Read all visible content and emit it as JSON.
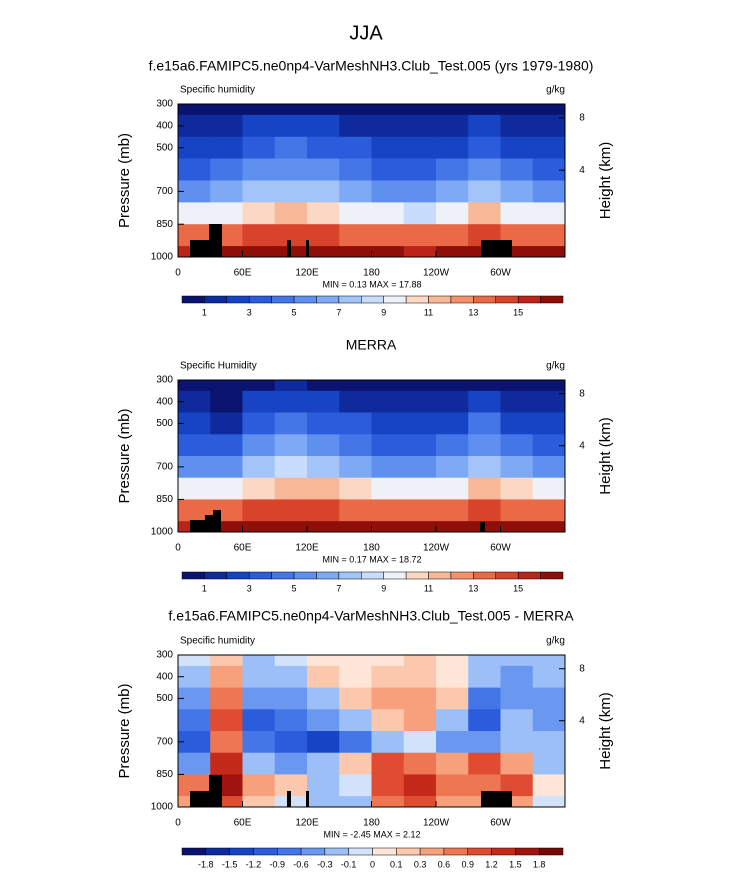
{
  "title": "JJA",
  "chart_data": [
    {
      "type": "contour",
      "title": "f.e15a6.FAMIPC5.ne0np4-VarMeshNH3.Club_Test.005 (yrs 1979-1980)",
      "left_label": "Specific humidity",
      "right_label": "g/kg",
      "ylabel": "Pressure (mb)",
      "y2label": "Height (km)",
      "stats": "MIN =  0.13  MAX =  17.88",
      "x": [
        15,
        45,
        75,
        105,
        135,
        165,
        195,
        225,
        255,
        285,
        315,
        345
      ],
      "y": [
        300,
        400,
        500,
        600,
        700,
        800,
        900,
        1000
      ],
      "z": [
        [
          0.5,
          0.6,
          0.8,
          0.9,
          0.9,
          0.7,
          0.5,
          0.4,
          0.5,
          0.8,
          0.6,
          0.5
        ],
        [
          1.2,
          1.5,
          2.2,
          2.5,
          2.3,
          1.8,
          1.3,
          1.1,
          1.4,
          2.2,
          1.6,
          1.3
        ],
        [
          2.2,
          2.6,
          3.6,
          4.0,
          3.8,
          3.0,
          2.3,
          2.0,
          2.6,
          3.8,
          2.8,
          2.3
        ],
        [
          3.6,
          4.2,
          5.3,
          5.8,
          5.6,
          4.6,
          3.8,
          3.4,
          4.2,
          5.6,
          4.4,
          3.8
        ],
        [
          5.5,
          6.0,
          7.2,
          7.8,
          7.5,
          6.5,
          5.8,
          5.3,
          6.2,
          7.6,
          6.3,
          5.7
        ],
        [
          9.0,
          9.5,
          10.5,
          11.0,
          10.8,
          9.8,
          9.2,
          8.8,
          9.6,
          11.0,
          9.8,
          9.2
        ],
        [
          13.0,
          13.5,
          14.0,
          14.5,
          14.2,
          13.6,
          13.2,
          13.0,
          13.5,
          14.5,
          13.6,
          13.2
        ],
        [
          15.5,
          16.0,
          16.5,
          17.0,
          16.8,
          16.3,
          16.0,
          15.8,
          16.2,
          17.2,
          16.4,
          16.0
        ]
      ],
      "xlim": [
        0,
        360
      ],
      "xticks": [
        0,
        {
          "value": 60,
          "label": "60E"
        },
        {
          "value": 120,
          "label": "120E"
        },
        180,
        {
          "value": 240,
          "label": "120W"
        },
        {
          "value": 300,
          "label": "60W"
        }
      ],
      "ylim": [
        1000,
        300
      ],
      "yticks": [
        300,
        400,
        500,
        700,
        850,
        1000
      ],
      "y2lim": [
        0,
        9.5
      ],
      "y2ticks": [
        8,
        4
      ],
      "levels": [
        1,
        2,
        3,
        4,
        5,
        6,
        7,
        8,
        9,
        10,
        11,
        12,
        13,
        14,
        15,
        16
      ],
      "colors": [
        "#0a1470",
        "#0e2a9c",
        "#1744c4",
        "#2a5cdc",
        "#4476e8",
        "#5f90f0",
        "#7eaaf5",
        "#a2c4f9",
        "#c8dcfb",
        "#eef2f8",
        "#fbd8c4",
        "#f8b796",
        "#f3916c",
        "#ea6946",
        "#d8432c",
        "#bb2418",
        "#8e0e0a"
      ],
      "colorbar_ticks": [
        1,
        3,
        5,
        7,
        9,
        11,
        13,
        15
      ]
    },
    {
      "type": "contour",
      "title": "MERRA",
      "left_label": "Specific Humidity",
      "right_label": "g/kg",
      "ylabel": "Pressure (mb)",
      "y2label": "Height (km)",
      "stats": "MIN =  0.17  MAX =  18.72",
      "x": [
        15,
        45,
        75,
        105,
        135,
        165,
        195,
        225,
        255,
        285,
        315,
        345
      ],
      "y": [
        300,
        400,
        500,
        600,
        700,
        800,
        900,
        1000
      ],
      "z": [
        [
          0.5,
          0.4,
          0.9,
          1.0,
          0.9,
          0.7,
          0.5,
          0.4,
          0.5,
          0.9,
          0.6,
          0.5
        ],
        [
          1.2,
          0.9,
          2.4,
          2.6,
          2.4,
          1.8,
          1.3,
          1.1,
          1.4,
          2.4,
          1.6,
          1.3
        ],
        [
          2.2,
          1.6,
          3.8,
          4.2,
          3.9,
          3.0,
          2.3,
          2.0,
          2.6,
          4.0,
          2.8,
          2.3
        ],
        [
          3.8,
          3.0,
          5.5,
          6.0,
          5.7,
          4.7,
          3.9,
          3.5,
          4.3,
          5.8,
          4.5,
          3.9
        ],
        [
          5.8,
          5.0,
          7.4,
          8.0,
          7.6,
          6.6,
          5.9,
          5.4,
          6.3,
          7.8,
          6.4,
          5.8
        ],
        [
          9.3,
          9.0,
          10.8,
          11.2,
          11.0,
          10.0,
          9.4,
          9.0,
          9.8,
          11.2,
          10.0,
          9.4
        ],
        [
          13.3,
          13.0,
          14.2,
          14.7,
          14.4,
          13.8,
          13.4,
          13.2,
          13.7,
          14.7,
          13.8,
          13.4
        ],
        [
          15.8,
          16.0,
          16.8,
          17.3,
          17.0,
          16.5,
          16.2,
          16.0,
          16.4,
          17.5,
          16.6,
          16.2
        ]
      ],
      "xlim": [
        0,
        360
      ],
      "xticks": [
        0,
        {
          "value": 60,
          "label": "60E"
        },
        {
          "value": 120,
          "label": "120E"
        },
        180,
        {
          "value": 240,
          "label": "120W"
        },
        {
          "value": 300,
          "label": "60W"
        }
      ],
      "ylim": [
        1000,
        300
      ],
      "yticks": [
        300,
        400,
        500,
        700,
        850,
        1000
      ],
      "y2lim": [
        0,
        9.5
      ],
      "y2ticks": [
        8,
        4
      ],
      "levels": [
        1,
        2,
        3,
        4,
        5,
        6,
        7,
        8,
        9,
        10,
        11,
        12,
        13,
        14,
        15,
        16
      ],
      "colors": [
        "#0a1470",
        "#0e2a9c",
        "#1744c4",
        "#2a5cdc",
        "#4476e8",
        "#5f90f0",
        "#7eaaf5",
        "#a2c4f9",
        "#c8dcfb",
        "#eef2f8",
        "#fbd8c4",
        "#f8b796",
        "#f3916c",
        "#ea6946",
        "#d8432c",
        "#bb2418",
        "#8e0e0a"
      ],
      "colorbar_ticks": [
        1,
        3,
        5,
        7,
        9,
        11,
        13,
        15
      ]
    },
    {
      "type": "contour",
      "title": "f.e15a6.FAMIPC5.ne0np4-VarMeshNH3.Club_Test.005 - MERRA",
      "left_label": "Specific humidity",
      "right_label": "g/kg",
      "ylabel": "Pressure (mb)",
      "y2label": "Height (km)",
      "stats": "MIN = -2.45  MAX =  2.12",
      "x": [
        15,
        45,
        75,
        105,
        135,
        165,
        195,
        225,
        255,
        285,
        315,
        345
      ],
      "y": [
        300,
        400,
        500,
        600,
        700,
        800,
        900,
        1000
      ],
      "z": [
        [
          -0.1,
          0.2,
          -0.2,
          -0.1,
          0.0,
          0.0,
          0.0,
          0.1,
          0.0,
          -0.2,
          -0.3,
          -0.2
        ],
        [
          -0.3,
          0.5,
          -0.3,
          -0.2,
          0.1,
          0.0,
          0.1,
          0.1,
          0.0,
          -0.3,
          -0.4,
          -0.3
        ],
        [
          -0.6,
          0.8,
          -0.6,
          -0.4,
          -0.2,
          0.2,
          0.4,
          0.5,
          0.2,
          -0.8,
          -0.5,
          -0.4
        ],
        [
          -0.9,
          1.0,
          -1.2,
          -0.8,
          -0.5,
          -0.3,
          0.2,
          0.3,
          -0.2,
          -1.0,
          -0.3,
          -0.4
        ],
        [
          -1.0,
          0.8,
          -0.9,
          -1.2,
          -1.4,
          -0.8,
          -0.2,
          -0.1,
          -0.4,
          -0.6,
          -0.2,
          -0.3
        ],
        [
          -0.4,
          1.2,
          -0.3,
          -0.4,
          -0.3,
          0.2,
          0.9,
          0.8,
          0.3,
          0.9,
          0.5,
          -0.2
        ],
        [
          0.6,
          1.5,
          0.3,
          0.1,
          -0.2,
          -0.1,
          1.0,
          1.2,
          0.6,
          0.6,
          1.0,
          0.0
        ],
        [
          0.3,
          1.0,
          0.1,
          -0.1,
          -0.3,
          -0.2,
          0.6,
          0.9,
          0.4,
          0.3,
          0.5,
          -0.1
        ]
      ],
      "xlim": [
        0,
        360
      ],
      "xticks": [
        0,
        {
          "value": 60,
          "label": "60E"
        },
        {
          "value": 120,
          "label": "120E"
        },
        180,
        {
          "value": 240,
          "label": "120W"
        },
        {
          "value": 300,
          "label": "60W"
        }
      ],
      "ylim": [
        1000,
        300
      ],
      "yticks": [
        300,
        400,
        500,
        700,
        850,
        1000
      ],
      "y2lim": [
        0,
        9.5
      ],
      "y2ticks": [
        8,
        4
      ],
      "levels": [
        -1.8,
        -1.5,
        -1.2,
        -0.9,
        -0.6,
        -0.3,
        -0.1,
        0,
        0.1,
        0.3,
        0.6,
        0.9,
        1.2,
        1.5,
        1.8
      ],
      "colors": [
        "#0a1470",
        "#0e2a9c",
        "#1744c4",
        "#2a5cdc",
        "#4476e8",
        "#6a98f0",
        "#9cbff7",
        "#d2e2fb",
        "#fde6d8",
        "#fbc8ad",
        "#f7a07c",
        "#ef7652",
        "#df4c32",
        "#c42a1a",
        "#a01410",
        "#760806"
      ],
      "colorbar_ticks": [
        -1.8,
        -1.5,
        -1.2,
        -0.9,
        -0.6,
        -0.3,
        -0.1,
        0,
        0.1,
        0.3,
        0.6,
        0.9,
        1.2,
        1.5,
        1.8
      ]
    }
  ]
}
